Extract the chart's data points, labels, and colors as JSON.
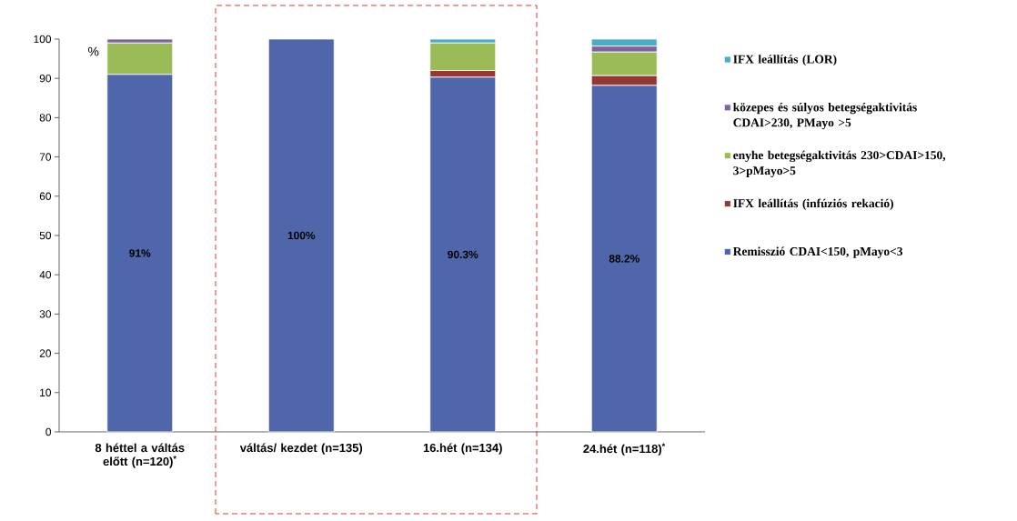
{
  "chart_data": {
    "type": "bar",
    "stacked": true,
    "ylabel": "%",
    "categories": [
      "8 héttel a váltás előtt (n=120)$^{*}$",
      "váltás/ kezdet (n=135)",
      "16.hét (n=134)",
      "24.hét (n=118)$^{*}$"
    ],
    "series": [
      {
        "name": "Remisszió CDAI<150, pMayo<3",
        "color": "#4f66ab",
        "values": [
          91,
          100,
          90.3,
          88.2
        ],
        "value_labels": [
          "91%",
          "100%",
          "90.3%",
          "88.2%"
        ]
      },
      {
        "name": "IFX leállítás (infúziós rekació)",
        "color": "#953735",
        "values": [
          0,
          0,
          1.7,
          2.5
        ]
      },
      {
        "name": "enyhe betegségaktivitás 230>CDAI>150, 3>pMayo>5",
        "color": "#9bbb59",
        "values": [
          8,
          0,
          7,
          6
        ]
      },
      {
        "name": "közepes és súlyos betegségaktivitás CDAI>230, PMayo >5",
        "color": "#8064a2",
        "values": [
          1,
          0,
          0,
          1.5
        ]
      },
      {
        "name": "IFX leállítás (LOR)",
        "color": "#4bacc6",
        "values": [
          0,
          0,
          1,
          1.8
        ]
      }
    ],
    "ylim": [
      0,
      100
    ],
    "yticks": [
      0,
      10,
      20,
      30,
      40,
      50,
      60,
      70,
      80,
      90,
      100
    ],
    "legend": "right",
    "grid": false
  }
}
